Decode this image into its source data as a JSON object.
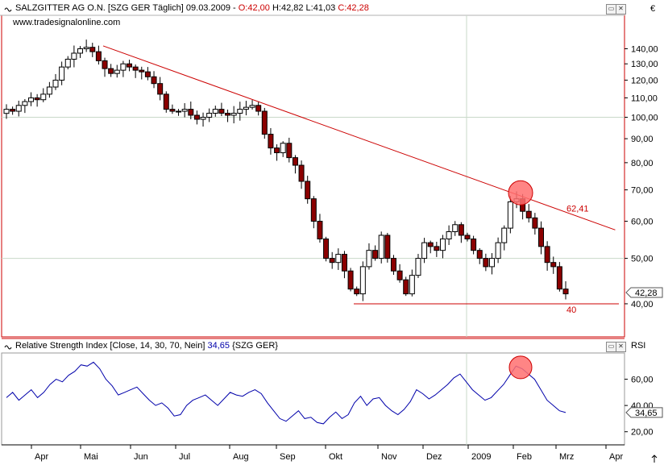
{
  "main_panel": {
    "title": "SALZGITTER AG O.N. [SZG GER  Täglich] 09.03.2009",
    "ohlc_open": "O:42,00",
    "ohlc_high": "H:42,82",
    "ohlc_low": "L:41,03",
    "ohlc_close": "C:42,28",
    "watermark": "www.tradesignalonline.com",
    "currency": "€",
    "last_price_label": "42,28",
    "trendline_label": "62,41",
    "support_label": "40",
    "colors": {
      "up": "#ffffff",
      "down": "#8b0000",
      "line": "#cc0000",
      "marker": "#ff7070",
      "grid": "#c9d9c9"
    }
  },
  "rsi_panel": {
    "title": "Relative Strength Index [Close, 14, 30, 70, Nein]",
    "value": "34,65",
    "symbol": "{SZG GER}",
    "axis_label": "RSI",
    "last_label": "34,65",
    "colors": {
      "line": "#0000aa"
    }
  },
  "x_axis": {
    "months": [
      "Apr",
      "Mai",
      "Jun",
      "Jul",
      "Aug",
      "Sep",
      "Okt",
      "Nov",
      "Dez",
      "2009",
      "Feb",
      "Mrz",
      "Apr"
    ]
  },
  "chart_data": [
    {
      "type": "candlestick",
      "title": "SALZGITTER AG O.N. [SZG GER  Täglich] 09.03.2009",
      "ylim": [
        34,
        165
      ],
      "y_ticks": [
        "140,00",
        "130,00",
        "120,00",
        "110,00",
        "100,00",
        "90,00",
        "80,00",
        "70,00",
        "60,00",
        "50,00",
        "40,00"
      ],
      "y_scale": "log",
      "close_series": [
        104,
        103,
        106,
        108,
        110,
        109,
        112,
        116,
        120,
        128,
        133,
        137,
        140,
        141,
        138,
        132,
        127,
        124,
        126,
        130,
        128,
        126,
        125,
        122,
        118,
        112,
        104,
        103,
        103,
        104,
        101,
        99,
        100,
        102,
        104,
        102,
        101,
        102,
        104,
        105,
        106,
        103,
        92,
        86,
        84,
        88,
        82,
        79,
        73,
        67,
        60,
        55,
        50,
        49,
        51,
        47,
        43,
        42,
        48,
        52,
        50,
        56,
        50,
        47,
        45,
        42,
        46,
        50,
        54,
        53,
        52,
        55,
        57,
        59,
        56,
        55,
        52,
        50,
        48,
        50,
        54,
        58,
        66,
        67,
        63,
        61,
        58,
        53,
        49,
        48,
        43,
        42
      ],
      "trendline": [
        [
          0.163,
          142
        ],
        [
          0.985,
          57.5
        ]
      ],
      "trendline_value": 62.41,
      "support_level": 40,
      "markers": [
        "trendline touch (Feb 2009)"
      ]
    },
    {
      "type": "line",
      "title": "Relative Strength Index [Close, 14, 30, 70, Nein]",
      "ylim": [
        10,
        80
      ],
      "y_ticks": [
        "60,00",
        "40,00",
        "20,00"
      ],
      "series": [
        {
          "values": [
            46,
            50,
            44,
            48,
            52,
            46,
            50,
            56,
            60,
            58,
            63,
            66,
            71,
            70,
            73,
            68,
            60,
            55,
            48,
            50,
            52,
            54,
            49,
            44,
            40,
            42,
            38,
            32,
            33,
            40,
            44,
            46,
            48,
            44,
            40,
            45,
            50,
            48,
            47,
            50,
            52,
            49,
            42,
            36,
            30,
            28,
            32,
            36,
            30,
            31,
            27,
            26,
            31,
            35,
            30,
            33,
            42,
            47,
            40,
            45,
            46,
            40,
            36,
            33,
            37,
            43,
            52,
            49,
            45,
            48,
            52,
            56,
            61,
            64,
            58,
            52,
            48,
            44,
            46,
            51,
            56,
            63,
            70,
            68,
            64,
            60,
            52,
            44,
            40,
            36,
            34.65
          ]
        }
      ],
      "markers": [
        "RSI peak (Feb 2009)"
      ]
    }
  ]
}
